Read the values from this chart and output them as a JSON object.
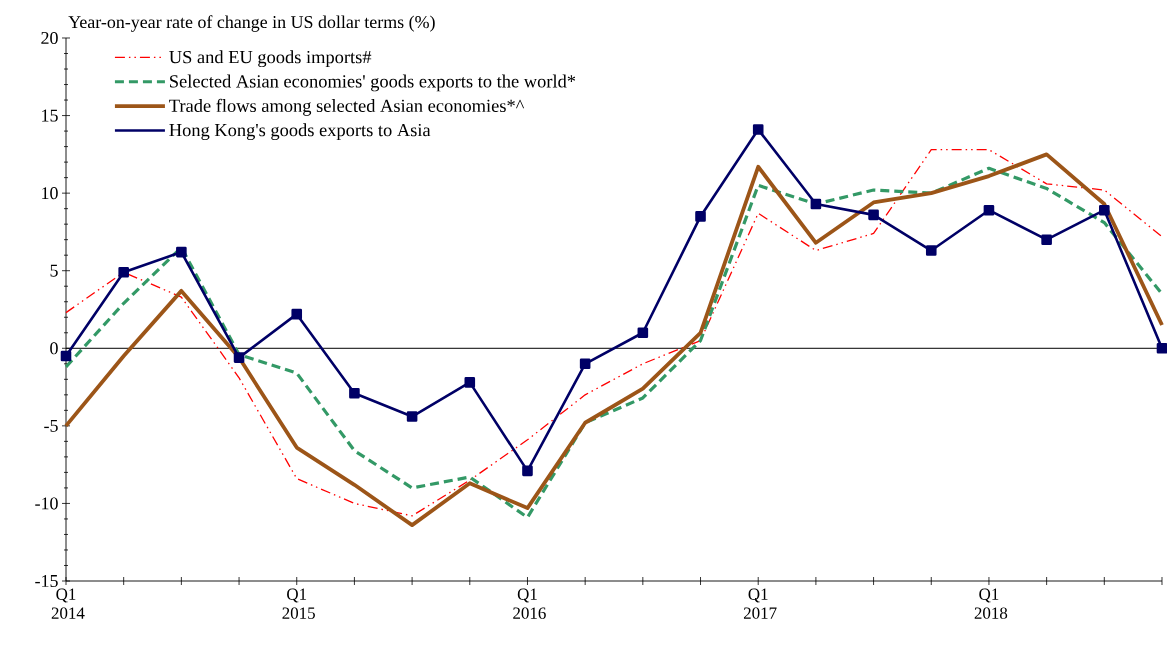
{
  "chart_data": {
    "type": "line",
    "ylabel": "Year-on-year rate of change in US dollar terms (%)",
    "categories": [
      "Q1 2014",
      null,
      null,
      null,
      "Q1 2015",
      null,
      null,
      null,
      "Q1 2016",
      null,
      null,
      null,
      "Q1 2017",
      null,
      null,
      null,
      "Q1 2018",
      null,
      null,
      null
    ],
    "ylim": [
      -15,
      20
    ],
    "yticks": [
      -15,
      -10,
      -5,
      0,
      5,
      10,
      15,
      20
    ],
    "legend": "top left",
    "ref_lines": [
      {
        "axis": "y",
        "value": 0,
        "color": "#000000"
      }
    ],
    "series": [
      {
        "name": "US and EU goods imports#",
        "color": "#ff0000",
        "line_style": "dashdotdotted",
        "marker": "none",
        "values": [
          2.3,
          4.9,
          3.3,
          -1.9,
          -8.4,
          -10.0,
          -10.8,
          -8.5,
          -5.9,
          -3.0,
          -1.0,
          0.5,
          8.7,
          6.3,
          7.4,
          12.8,
          12.8,
          10.6,
          10.2,
          7.2
        ]
      },
      {
        "name": "Selected Asian economies' goods exports to the world*",
        "color": "#339966",
        "line_style": "dashed",
        "marker": "none",
        "values": [
          -1.2,
          2.9,
          6.5,
          -0.4,
          -1.6,
          -6.6,
          -9.0,
          -8.3,
          -10.9,
          -4.8,
          -3.2,
          0.5,
          10.5,
          9.3,
          10.2,
          10.0,
          11.6,
          10.3,
          8.1,
          3.5
        ]
      },
      {
        "name": "Trade flows among selected Asian economies*^",
        "color": "#9c5518",
        "line_style": "solid",
        "marker": "none",
        "values": [
          -5.0,
          -0.5,
          3.7,
          -0.6,
          -6.4,
          -8.8,
          -11.4,
          -8.7,
          -10.3,
          -4.8,
          -2.6,
          1.0,
          11.7,
          6.8,
          9.4,
          10.0,
          11.1,
          12.5,
          9.3,
          1.5
        ]
      },
      {
        "name": "Hong Kong's goods exports to Asia",
        "color": "#000066",
        "line_style": "solid",
        "marker": "square",
        "values": [
          -0.5,
          4.9,
          6.2,
          -0.6,
          2.2,
          -2.9,
          -4.4,
          -2.2,
          -7.9,
          -1.0,
          1.0,
          8.5,
          14.1,
          9.3,
          8.6,
          6.3,
          8.9,
          7.0,
          8.9,
          0.0
        ]
      }
    ]
  }
}
